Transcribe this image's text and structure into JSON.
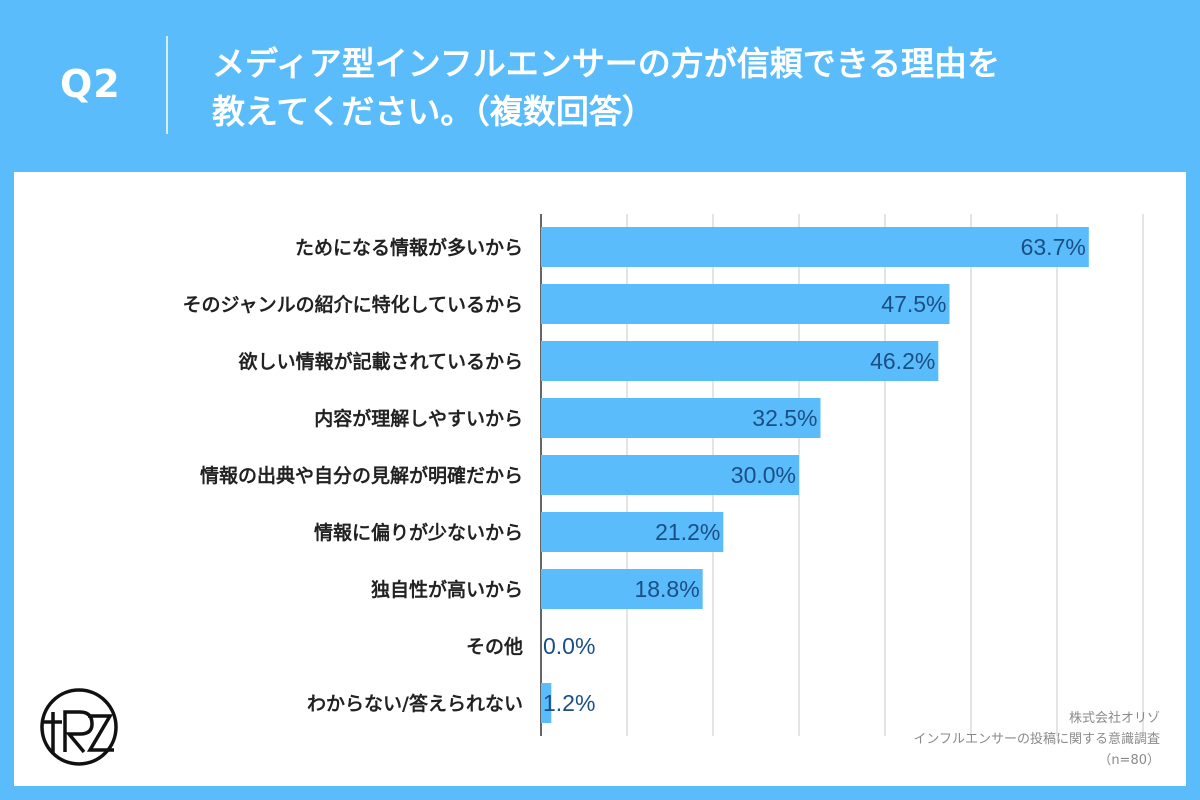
{
  "header": {
    "q_label": "Q2",
    "title_line1": "メディア型インフルエンサーの方が信頼できる理由を",
    "title_line2": "教えてください。（複数回答）"
  },
  "chart_data": {
    "type": "bar",
    "orientation": "horizontal",
    "categories": [
      "ためになる情報が多いから",
      "そのジャンルの紹介に特化しているから",
      "欲しい情報が記載されているから",
      "内容が理解しやすいから",
      "情報の出典や自分の見解が明確だから",
      "情報に偏りが少ないから",
      "独自性が高いから",
      "その他",
      "わからない/答えられない"
    ],
    "values": [
      63.7,
      47.5,
      46.2,
      32.5,
      30.0,
      21.2,
      18.8,
      0.0,
      1.2
    ],
    "value_labels": [
      "63.7%",
      "47.5%",
      "46.2%",
      "32.5%",
      "30.0%",
      "21.2%",
      "18.8%",
      "0.0%",
      "1.2%"
    ],
    "xlim": [
      0,
      70
    ],
    "grid": true,
    "bar_color": "#5bbcfb",
    "title": "",
    "xlabel": "",
    "ylabel": ""
  },
  "footer": {
    "company": "株式会社オリゾ",
    "survey": "インフルエンサーの投稿に関する意識調査",
    "n": "（n=80）"
  },
  "logo": {
    "name": "orizo-logo"
  }
}
